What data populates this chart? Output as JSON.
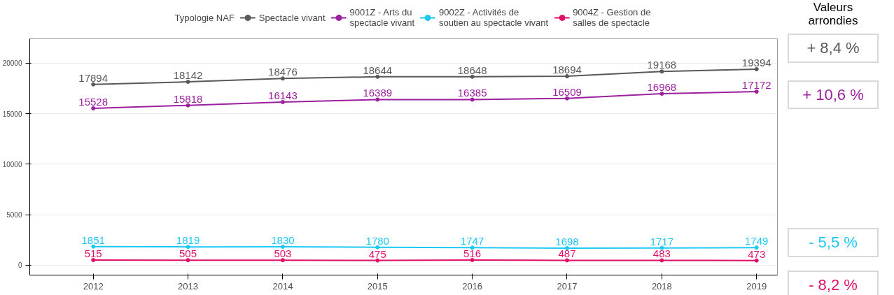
{
  "chart_data": {
    "type": "line",
    "legend_title": "Typologie NAF",
    "legend": "top",
    "grid": "y",
    "marker": "circle",
    "line_style": "solid",
    "data_labels": true,
    "x": [
      2012,
      2013,
      2014,
      2015,
      2016,
      2017,
      2018,
      2019
    ],
    "xlim": [
      2011.33,
      2019.22
    ],
    "xticks": [
      2012,
      2013,
      2014,
      2015,
      2016,
      2017,
      2018,
      2019
    ],
    "ylim": [
      -970,
      22400
    ],
    "yticks": [
      0,
      5000,
      10000,
      15000,
      20000
    ],
    "series": [
      {
        "name": "Spectacle vivant",
        "color": "#595959",
        "values": [
          17894,
          18142,
          18476,
          18644,
          18648,
          18694,
          19168,
          19394
        ]
      },
      {
        "name": "9001Z - Arts du spectacle vivant",
        "color": "#9c1f9e",
        "values": [
          15528,
          15818,
          16143,
          16389,
          16385,
          16509,
          16968,
          17172
        ]
      },
      {
        "name": "9002Z - Activités de soutien au spectacle vivant",
        "color": "#1ec8f5",
        "values": [
          1851,
          1819,
          1830,
          1780,
          1747,
          1698,
          1717,
          1749
        ]
      },
      {
        "name": "9004Z - Gestion de salles de spectacle",
        "color": "#e0106a",
        "values": [
          515,
          505,
          503,
          475,
          516,
          487,
          483,
          473
        ]
      }
    ],
    "annotations": [
      "Valeurs arrondies",
      "+ 8,4 %",
      "+ 10,6 %",
      "- 5,5 %",
      "- 8,2 %"
    ]
  }
}
